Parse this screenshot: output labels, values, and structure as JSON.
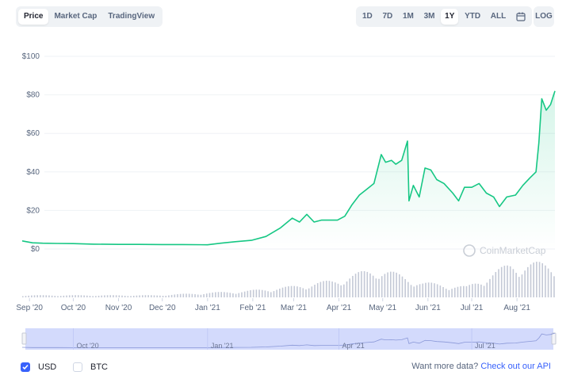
{
  "controls": {
    "chart_tabs": [
      {
        "label": "Price",
        "active": true
      },
      {
        "label": "Market Cap",
        "active": false
      },
      {
        "label": "TradingView",
        "active": false
      }
    ],
    "ranges": [
      {
        "label": "1D",
        "active": false
      },
      {
        "label": "7D",
        "active": false
      },
      {
        "label": "1M",
        "active": false
      },
      {
        "label": "3M",
        "active": false
      },
      {
        "label": "1Y",
        "active": true
      },
      {
        "label": "YTD",
        "active": false
      },
      {
        "label": "ALL",
        "active": false
      }
    ],
    "calendar_icon": "calendar-icon",
    "log_label": "LOG"
  },
  "legend": {
    "usd_label": "USD",
    "usd_checked": true,
    "btc_label": "BTC",
    "btc_checked": false
  },
  "api": {
    "text": "Want more data?",
    "link": "Check out our API"
  },
  "watermark": "CoinMarketCap",
  "colors": {
    "line": "#16c784",
    "area": "#16c784",
    "volume": "#c4c9d6",
    "navigator": "#d3dafc",
    "accent": "#3861fb"
  },
  "chart_data": {
    "type": "line",
    "y_ticks": [
      "$0",
      "$20",
      "$40",
      "$60",
      "$80",
      "$100"
    ],
    "ylim": [
      0,
      100
    ],
    "x_ticks": [
      "Sep '20",
      "Oct '20",
      "Nov '20",
      "Dec '20",
      "Jan '21",
      "Feb '21",
      "Mar '21",
      "Apr '21",
      "May '21",
      "Jun '21",
      "Jul '21",
      "Aug '21"
    ],
    "navigator_ticks": [
      "Oct '20",
      "Jan '21",
      "Apr '21",
      "Jul '21"
    ],
    "grid": true,
    "price_series": {
      "x": [
        "2020-08-27",
        "2020-09-03",
        "2020-09-10",
        "2020-09-20",
        "2020-10-01",
        "2020-10-15",
        "2020-11-01",
        "2020-11-15",
        "2020-12-01",
        "2020-12-15",
        "2021-01-01",
        "2021-01-10",
        "2021-01-20",
        "2021-01-31",
        "2021-02-10",
        "2021-02-20",
        "2021-02-28",
        "2021-03-05",
        "2021-03-10",
        "2021-03-15",
        "2021-03-20",
        "2021-03-31",
        "2021-04-05",
        "2021-04-10",
        "2021-04-15",
        "2021-04-20",
        "2021-04-25",
        "2021-04-30",
        "2021-05-03",
        "2021-05-07",
        "2021-05-10",
        "2021-05-14",
        "2021-05-18",
        "2021-05-19",
        "2021-05-22",
        "2021-05-26",
        "2021-05-30",
        "2021-06-03",
        "2021-06-07",
        "2021-06-12",
        "2021-06-18",
        "2021-06-22",
        "2021-06-26",
        "2021-07-01",
        "2021-07-06",
        "2021-07-11",
        "2021-07-16",
        "2021-07-20",
        "2021-07-25",
        "2021-07-31",
        "2021-08-05",
        "2021-08-10",
        "2021-08-14",
        "2021-08-16",
        "2021-08-18",
        "2021-08-21",
        "2021-08-24",
        "2021-08-27"
      ],
      "values": [
        4.2,
        3.2,
        3.0,
        2.9,
        2.8,
        2.5,
        2.4,
        2.4,
        2.3,
        2.3,
        2.2,
        3.0,
        3.8,
        4.5,
        6.5,
        11,
        16,
        14,
        18,
        14,
        15,
        15,
        17,
        23,
        28,
        31,
        34,
        49,
        45,
        46,
        44,
        46,
        56,
        25,
        33,
        27,
        42,
        41,
        36,
        34,
        29,
        25,
        32,
        32,
        34,
        29,
        27,
        22,
        27,
        28,
        33,
        37,
        40,
        55,
        78,
        72,
        75,
        82
      ]
    },
    "volume_series": {
      "note_units": "relative",
      "x": [
        "2020-09",
        "2020-10",
        "2020-11",
        "2020-12",
        "2021-01",
        "2021-02",
        "2021-03",
        "2021-04",
        "2021-05",
        "2021-06",
        "2021-07",
        "2021-08"
      ],
      "values": [
        1,
        1,
        1,
        1,
        2,
        3,
        5,
        8,
        14,
        7,
        5,
        16
      ]
    }
  }
}
